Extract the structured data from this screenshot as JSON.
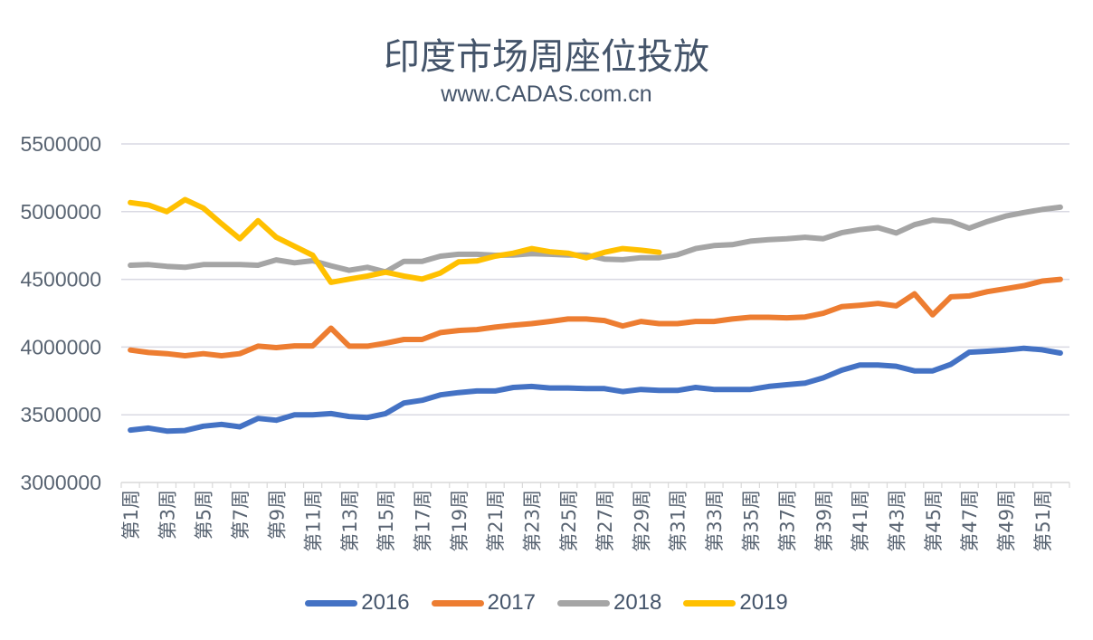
{
  "header": {
    "title": "印度市场周座位投放",
    "subtitle": "www.CADAS.com.cn"
  },
  "chart_data": {
    "type": "line",
    "title": "印度市场周座位投放",
    "subtitle": "www.CADAS.com.cn",
    "xlabel": "",
    "ylabel": "",
    "ylim": [
      3000000,
      5500000
    ],
    "yticks": [
      "3000000",
      "3500000",
      "4000000",
      "4500000",
      "5000000",
      "5500000"
    ],
    "ytick_values": [
      3000000,
      3500000,
      4000000,
      4500000,
      5000000,
      5500000
    ],
    "grid": true,
    "legend_position": "bottom",
    "x": [
      "第1周",
      "第2周",
      "第3周",
      "第4周",
      "第5周",
      "第6周",
      "第7周",
      "第8周",
      "第9周",
      "第10周",
      "第11周",
      "第12周",
      "第13周",
      "第14周",
      "第15周",
      "第16周",
      "第17周",
      "第18周",
      "第19周",
      "第20周",
      "第21周",
      "第22周",
      "第23周",
      "第24周",
      "第25周",
      "第26周",
      "第27周",
      "第28周",
      "第29周",
      "第30周",
      "第31周",
      "第32周",
      "第33周",
      "第34周",
      "第35周",
      "第36周",
      "第37周",
      "第38周",
      "第39周",
      "第40周",
      "第41周",
      "第42周",
      "第43周",
      "第44周",
      "第45周",
      "第46周",
      "第47周",
      "第48周",
      "第49周",
      "第50周",
      "第51周",
      "第52周"
    ],
    "visible_xtick_labels": [
      "第1周",
      "第3周",
      "第5周",
      "第7周",
      "第9周",
      "第11周",
      "第13周",
      "第15周",
      "第17周",
      "第19周",
      "第21周",
      "第23周",
      "第25周",
      "第27周",
      "第29周",
      "第31周",
      "第33周",
      "第35周",
      "第37周",
      "第39周",
      "第41周",
      "第43周",
      "第45周",
      "第47周",
      "第49周",
      "第51周"
    ],
    "series": [
      {
        "name": "2016",
        "color": "#4472c4",
        "values": [
          3387000,
          3402000,
          3380000,
          3384000,
          3416000,
          3429000,
          3411000,
          3473000,
          3460000,
          3500000,
          3500000,
          3509000,
          3487000,
          3480000,
          3509000,
          3587000,
          3607000,
          3647000,
          3664000,
          3676000,
          3676000,
          3702000,
          3709000,
          3698000,
          3698000,
          3693000,
          3693000,
          3671000,
          3687000,
          3680000,
          3680000,
          3702000,
          3687000,
          3687000,
          3687000,
          3709000,
          3722000,
          3733000,
          3773000,
          3829000,
          3867000,
          3867000,
          3858000,
          3824000,
          3824000,
          3873000,
          3962000,
          3969000,
          3978000,
          3991000,
          3980000,
          3956000
        ]
      },
      {
        "name": "2017",
        "color": "#ed7d31",
        "values": [
          3978000,
          3960000,
          3951000,
          3936000,
          3951000,
          3936000,
          3951000,
          4007000,
          3996000,
          4009000,
          4009000,
          4140000,
          4007000,
          4007000,
          4029000,
          4056000,
          4056000,
          4107000,
          4122000,
          4129000,
          4147000,
          4162000,
          4173000,
          4189000,
          4207000,
          4207000,
          4196000,
          4156000,
          4189000,
          4173000,
          4173000,
          4189000,
          4189000,
          4207000,
          4220000,
          4220000,
          4216000,
          4222000,
          4249000,
          4298000,
          4309000,
          4322000,
          4304000,
          4393000,
          4238000,
          4371000,
          4378000,
          4409000,
          4431000,
          4453000,
          4487000,
          4500000
        ]
      },
      {
        "name": "2018",
        "color": "#a5a5a5",
        "values": [
          4604000,
          4609000,
          4596000,
          4589000,
          4609000,
          4609000,
          4609000,
          4604000,
          4644000,
          4622000,
          4638000,
          4600000,
          4567000,
          4589000,
          4555000,
          4633000,
          4633000,
          4671000,
          4685000,
          4685000,
          4678000,
          4680000,
          4690000,
          4685000,
          4680000,
          4680000,
          4650000,
          4645000,
          4660000,
          4660000,
          4682000,
          4727000,
          4749000,
          4756000,
          4782000,
          4793000,
          4800000,
          4811000,
          4800000,
          4844000,
          4867000,
          4882000,
          4842000,
          4904000,
          4938000,
          4927000,
          4878000,
          4927000,
          4967000,
          4993000,
          5016000,
          5033000
        ]
      },
      {
        "name": "2019",
        "color": "#ffc000",
        "values": [
          5067000,
          5049000,
          5000000,
          5089000,
          5027000,
          4911000,
          4800000,
          4933000,
          4811000,
          4744000,
          4678000,
          4478000,
          4502000,
          4525000,
          4553000,
          4525000,
          4502000,
          4547000,
          4629000,
          4636000,
          4671000,
          4693000,
          4727000,
          4704000,
          4693000,
          4660000,
          4700000,
          4727000,
          4715000,
          4700000
        ]
      }
    ]
  }
}
